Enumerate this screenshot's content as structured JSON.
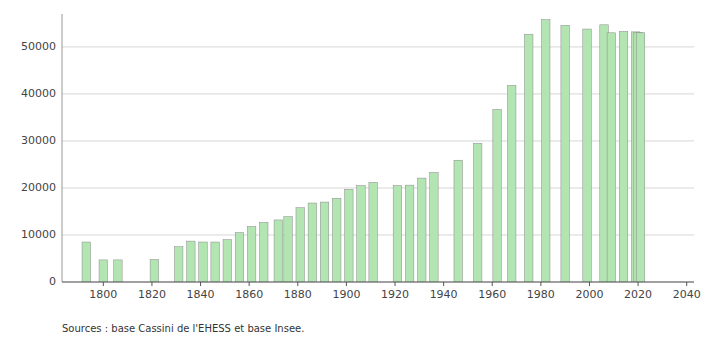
{
  "chart_data": {
    "type": "bar",
    "x": [
      1793,
      1800,
      1806,
      1821,
      1831,
      1836,
      1841,
      1846,
      1851,
      1856,
      1861,
      1866,
      1872,
      1876,
      1881,
      1886,
      1891,
      1896,
      1901,
      1906,
      1911,
      1921,
      1926,
      1931,
      1936,
      1946,
      1954,
      1962,
      1968,
      1975,
      1982,
      1990,
      1999,
      2006,
      2009,
      2014,
      2019,
      2020,
      2021
    ],
    "values": [
      8500,
      4700,
      4700,
      4800,
      7500,
      8700,
      8500,
      8500,
      9000,
      10500,
      11800,
      12700,
      13200,
      13900,
      15800,
      16800,
      17000,
      17800,
      19700,
      20500,
      21200,
      20500,
      20600,
      22100,
      23300,
      25900,
      29500,
      36700,
      41800,
      52700,
      55800,
      54600,
      53800,
      54700,
      53000,
      53300,
      53200,
      53100,
      53000
    ],
    "color": "#b2e5b2",
    "xlim": [
      1783,
      2043
    ],
    "xticks": [
      1800,
      1820,
      1840,
      1860,
      1880,
      1900,
      1920,
      1940,
      1960,
      1980,
      2000,
      2020,
      2040
    ],
    "ylim": [
      0,
      57000
    ],
    "yticks": [
      0,
      10000,
      20000,
      30000,
      40000,
      50000
    ],
    "grid": true,
    "annotations": [
      "Sources : base Cassini de l'EHESS et base Insee."
    ]
  }
}
